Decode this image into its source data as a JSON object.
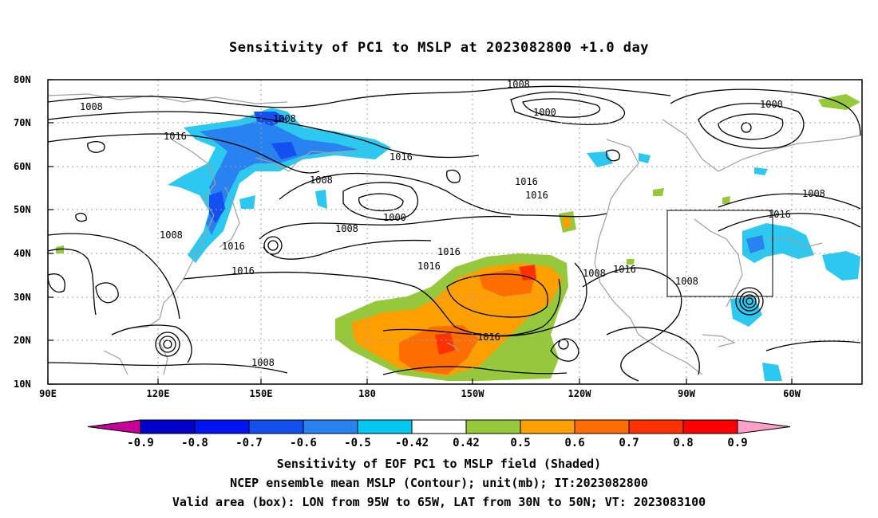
{
  "title": "Sensitivity of PC1 to MSLP at 2023082800 +1.0 day",
  "map": {
    "lon_labels": [
      "90E",
      "120E",
      "150E",
      "180",
      "150W",
      "120W",
      "90W",
      "60W"
    ],
    "lat_labels": [
      "80N",
      "70N",
      "60N",
      "50N",
      "40N",
      "30N",
      "20N",
      "10N"
    ],
    "valid_box": {
      "lon_west": "95W",
      "lon_east": "65W",
      "lat_south": "30N",
      "lat_north": "50N"
    },
    "contour_labels": [
      "1008",
      "1000",
      "1000",
      "1008",
      "1016",
      "1008",
      "1016",
      "1016",
      "1016",
      "1008",
      "1016",
      "1016",
      "1016",
      "1008",
      "1016",
      "1016",
      "1008",
      "1016",
      "1008",
      "1008",
      "1008",
      "1000",
      "1008",
      "1016"
    ]
  },
  "colorbar": {
    "labels": [
      "-0.9",
      "-0.8",
      "-0.7",
      "-0.6",
      "-0.5",
      "-0.42",
      "0.42",
      "0.5",
      "0.6",
      "0.7",
      "0.8",
      "0.9"
    ],
    "colors": [
      "#c8009a",
      "#0000c8",
      "#0014f0",
      "#1450f0",
      "#2882f0",
      "#00c8f0",
      "#ffffff",
      "#96c83c",
      "#ffa000",
      "#ff6e00",
      "#ff3200",
      "#ff0000",
      "#ffa0c8"
    ]
  },
  "captions": [
    "Sensitivity of EOF PC1 to MSLP field (Shaded)",
    "NCEP ensemble mean MSLP (Contour); unit(mb); IT:2023082800",
    "Valid area (box): LON from 95W to 65W, LAT from 30N to 50N; VT: 2023083100"
  ]
}
